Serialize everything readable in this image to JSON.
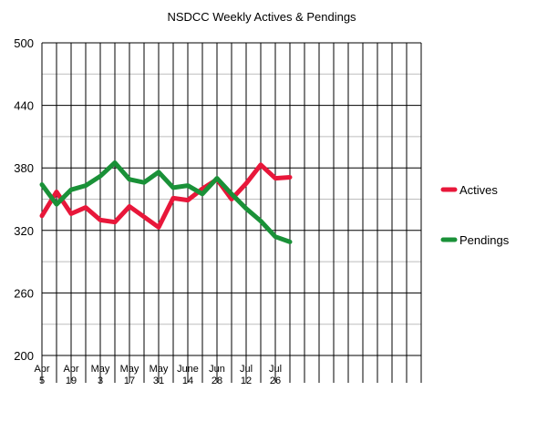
{
  "chart_data": {
    "type": "line",
    "title": "NSDCC Weekly Actives & Pendings",
    "xlabel": "",
    "ylabel": "",
    "ylim": [
      200,
      500
    ],
    "yticks": [
      200,
      260,
      320,
      380,
      440,
      500
    ],
    "x_tick_labels": [
      [
        "Apr",
        "5"
      ],
      [
        "Apr",
        "19"
      ],
      [
        "May",
        "3"
      ],
      [
        "May",
        "17"
      ],
      [
        "May",
        "31"
      ],
      [
        "June",
        "14"
      ],
      [
        "Jun",
        "28"
      ],
      [
        "Jul",
        "12"
      ],
      [
        "Jul",
        "26"
      ]
    ],
    "x_slots": 26,
    "grid": true,
    "legend_position": "right",
    "series": [
      {
        "name": "Actives",
        "color": "#e8173a",
        "values": [
          334,
          357,
          336,
          342,
          330,
          328,
          343,
          333,
          323,
          351,
          349,
          360,
          369,
          350,
          365,
          383,
          370,
          371
        ]
      },
      {
        "name": "Pendings",
        "color": "#1a9138",
        "values": [
          364,
          345,
          359,
          363,
          372,
          385,
          369,
          366,
          376,
          361,
          363,
          355,
          370,
          355,
          341,
          329,
          314,
          309
        ]
      }
    ]
  }
}
